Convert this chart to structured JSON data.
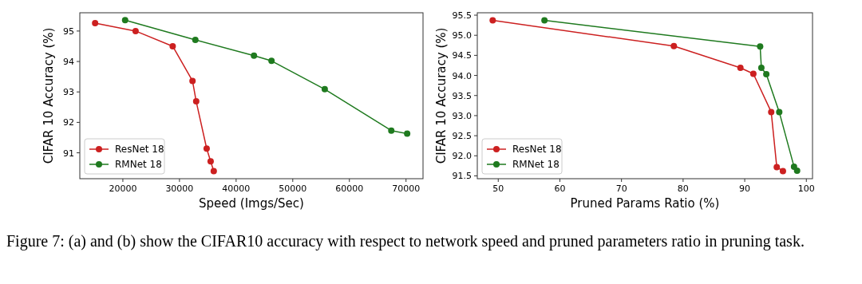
{
  "chart_data": [
    {
      "type": "line",
      "xlabel": "Speed (Imgs/Sec)",
      "ylabel": "CIFAR 10 Accuracy (%)",
      "xlim": [
        12400,
        73000
      ],
      "xticks": [
        20000,
        30000,
        40000,
        50000,
        60000,
        70000
      ],
      "ylim": [
        90.15,
        95.6
      ],
      "yticks": [
        91,
        92,
        93,
        94,
        95
      ],
      "grid": false,
      "legend": "bottom left",
      "marker": "circle",
      "line_style": "solid",
      "series": [
        {
          "name": "ResNet 18",
          "color": "#cc2020",
          "x": [
            15100,
            22250,
            28800,
            32300,
            32950,
            34800,
            35500,
            36050
          ],
          "values": [
            95.26,
            95.0,
            94.5,
            93.36,
            92.69,
            91.14,
            90.72,
            90.4
          ]
        },
        {
          "name": "RMNet 18",
          "color": "#1f7a1f",
          "x": [
            20400,
            32800,
            43150,
            46250,
            55650,
            67400,
            70200
          ],
          "values": [
            95.36,
            94.71,
            94.19,
            94.02,
            93.09,
            91.73,
            91.63
          ]
        }
      ],
      "annotations": [
        "Figure 7:    (a) and (b) show the CIFAR10 accuracy with respect to network speed and pruned parameters ratio in pruning task."
      ]
    },
    {
      "type": "line",
      "xlabel": "Pruned Params Ratio (%)",
      "ylabel": "CIFAR 10 Accuracy (%)",
      "xlim": [
        46.6,
        101
      ],
      "xticks": [
        50,
        60,
        70,
        80,
        90,
        100
      ],
      "ylim": [
        91.43,
        95.56
      ],
      "yticks": [
        {
          "value": 91.5,
          "label": "91.5"
        },
        {
          "value": 92,
          "label": "92.0"
        },
        {
          "value": 92.5,
          "label": "92.5"
        },
        {
          "value": 93,
          "label": "93.0"
        },
        {
          "value": 93.5,
          "label": "93.5"
        },
        {
          "value": 94,
          "label": "94.0"
        },
        {
          "value": 94.5,
          "label": "94.5"
        },
        {
          "value": 95,
          "label": "95.0"
        },
        {
          "value": 95.5,
          "label": "95.5"
        }
      ],
      "grid": false,
      "legend": "bottom left",
      "marker": "circle",
      "line_style": "solid",
      "series": [
        {
          "name": "ResNet 18",
          "color": "#cc2020",
          "x": [
            49.1,
            78.5,
            89.3,
            91.4,
            94.3,
            95.2,
            96.2
          ],
          "values": [
            95.37,
            94.73,
            94.19,
            94.04,
            93.09,
            91.72,
            91.62
          ]
        },
        {
          "name": "RMNet 18",
          "color": "#1f7a1f",
          "x": [
            57.5,
            92.5,
            92.7,
            93.5,
            95.6,
            98.0,
            98.5
          ],
          "values": [
            95.37,
            94.72,
            94.19,
            94.03,
            93.09,
            91.73,
            91.63
          ]
        }
      ]
    }
  ]
}
